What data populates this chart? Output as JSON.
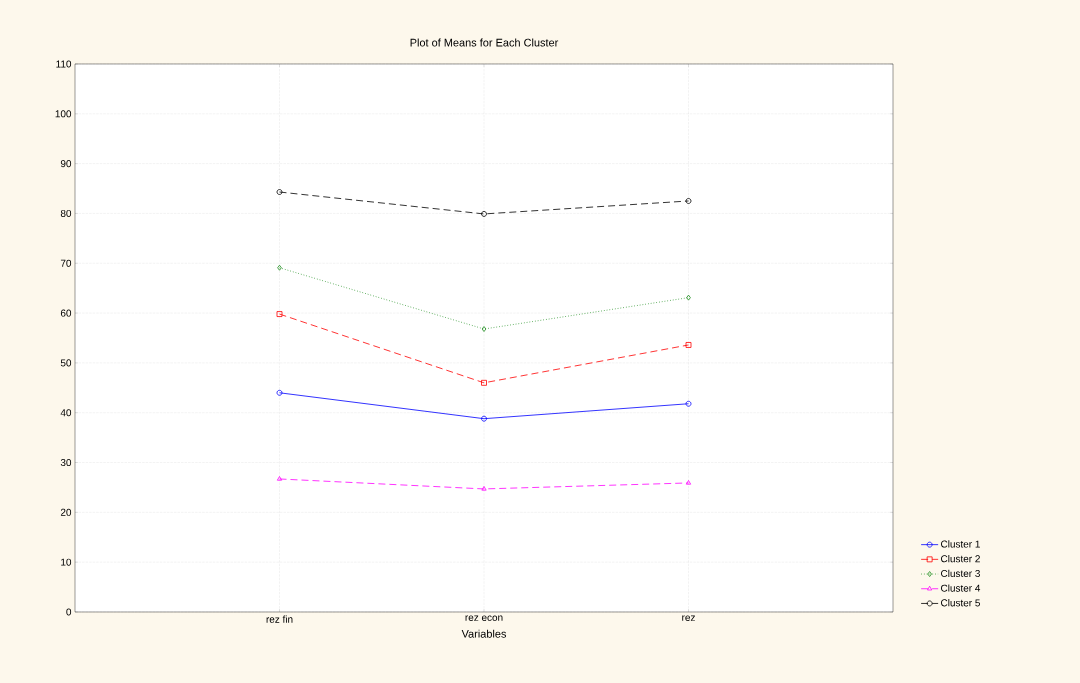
{
  "chart_data": {
    "type": "line",
    "title": "Plot of Means for Each Cluster",
    "xlabel": "Variables",
    "categories": [
      "rez fin",
      "rez econ",
      "rez"
    ],
    "series": [
      {
        "name": "Cluster 1",
        "color": "#0000ff",
        "values": [
          44.0,
          38.8,
          41.8
        ],
        "marker": "circle",
        "line_style": "solid"
      },
      {
        "name": "Cluster 2",
        "color": "#ff0000",
        "values": [
          59.8,
          46.0,
          53.6
        ],
        "marker": "square",
        "line_style": "dashed"
      },
      {
        "name": "Cluster 3",
        "color": "#1a8c1a",
        "values": [
          69.1,
          56.8,
          63.1
        ],
        "marker": "diamond",
        "line_style": "dotted"
      },
      {
        "name": "Cluster 4",
        "color": "#ff00ff",
        "values": [
          26.7,
          24.7,
          25.9
        ],
        "marker": "triangle",
        "line_style": "dashed"
      },
      {
        "name": "Cluster 5",
        "color": "#000000",
        "values": [
          84.3,
          79.9,
          82.5
        ],
        "marker": "circle",
        "line_style": "dashed"
      }
    ],
    "ylim": [
      0,
      110
    ],
    "yticks": [
      0,
      10,
      20,
      30,
      40,
      50,
      60,
      70,
      80,
      90,
      100,
      110
    ],
    "grid": true,
    "legend": "bottom right"
  }
}
